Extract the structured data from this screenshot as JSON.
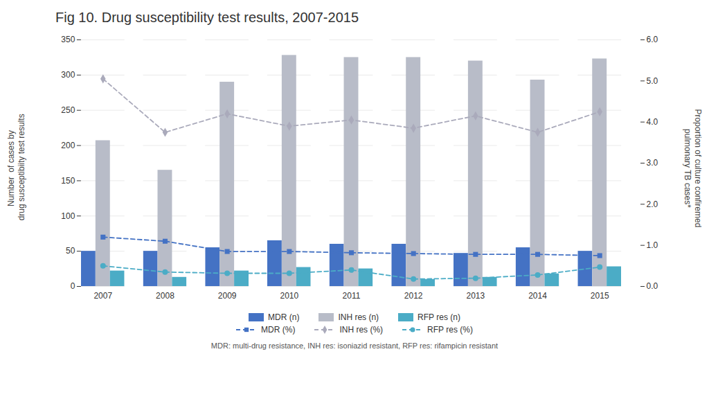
{
  "chart_data": {
    "type": "bar",
    "title": "Fig 10. Drug susceptibility test results, 2007-2015",
    "categories": [
      "2007",
      "2008",
      "2009",
      "2010",
      "2011",
      "2012",
      "2013",
      "2014",
      "2015"
    ],
    "series": [
      {
        "name": "MDR (n)",
        "type": "bar",
        "color": "#4472C4",
        "values": [
          50,
          50,
          55,
          65,
          60,
          60,
          47,
          55,
          50
        ]
      },
      {
        "name": "INH res (n)",
        "type": "bar",
        "color": "#B8BCC8",
        "values": [
          207,
          165,
          290,
          328,
          325,
          325,
          320,
          293,
          323
        ]
      },
      {
        "name": "RFP res (n)",
        "type": "bar",
        "color": "#4BACC6",
        "values": [
          22,
          13,
          22,
          27,
          25,
          10,
          13,
          18,
          28
        ]
      },
      {
        "name": "MDR (%)",
        "type": "line",
        "axis": "y2",
        "color": "#4472C4",
        "line_style": "dashed",
        "marker": "square",
        "values": [
          1.2,
          1.1,
          0.85,
          0.85,
          0.82,
          0.8,
          0.78,
          0.78,
          0.75
        ]
      },
      {
        "name": "INH res (%)",
        "type": "line",
        "axis": "y2",
        "color": "#AAAABB",
        "line_style": "dashed",
        "marker": "diamond",
        "values": [
          5.05,
          3.75,
          4.2,
          3.9,
          4.05,
          3.85,
          4.15,
          3.75,
          4.25
        ]
      },
      {
        "name": "RFP res (%)",
        "type": "line",
        "axis": "y2",
        "color": "#4BACC6",
        "line_style": "dashed",
        "marker": "circle",
        "values": [
          0.5,
          0.35,
          0.32,
          0.32,
          0.4,
          0.18,
          0.2,
          0.28,
          0.47
        ]
      }
    ],
    "ylabel": "Number  of cases by\n drug susceptibiity test results",
    "y2label": "Proportion of culture confiremed\npulmonary TB cases*",
    "ylim": [
      0,
      350
    ],
    "yticks": [
      0,
      50,
      100,
      150,
      200,
      250,
      300,
      350
    ],
    "y2lim": [
      0.0,
      6.0
    ],
    "y2ticks": [
      {
        "value": 0,
        "label": "0.0"
      },
      {
        "value": 1,
        "label": "1.0"
      },
      {
        "value": 2,
        "label": "2.0"
      },
      {
        "value": 3,
        "label": "3.0"
      },
      {
        "value": 4,
        "label": "4.0"
      },
      {
        "value": 5,
        "label": "5.0"
      },
      {
        "value": 6,
        "label": "6.0"
      }
    ],
    "grid": true,
    "legend": "bottom",
    "caption": "MDR: multi-drug resistance, INH res: isoniazid resistant, RFP res: rifampicin resistant"
  }
}
